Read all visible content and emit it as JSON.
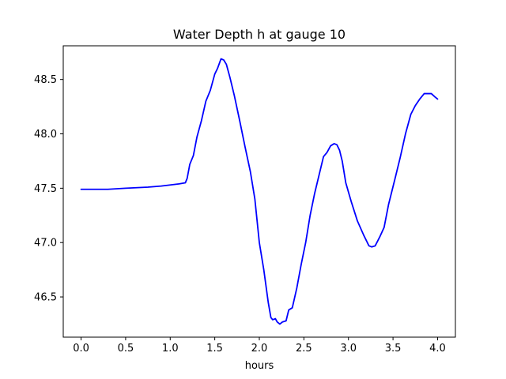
{
  "chart_data": {
    "type": "line",
    "title": "Water Depth h at gauge 10",
    "xlabel": "hours",
    "ylabel": "",
    "xlim": [
      -0.2,
      4.2
    ],
    "ylim": [
      46.13,
      48.81
    ],
    "xticks": [
      0.0,
      0.5,
      1.0,
      1.5,
      2.0,
      2.5,
      3.0,
      3.5,
      4.0
    ],
    "xtick_labels": [
      "0.0",
      "0.5",
      "1.0",
      "1.5",
      "2.0",
      "2.5",
      "3.0",
      "3.5",
      "4.0"
    ],
    "yticks": [
      46.5,
      47.0,
      47.5,
      48.0,
      48.5
    ],
    "ytick_labels": [
      "46.5",
      "47.0",
      "47.5",
      "48.0",
      "48.5"
    ],
    "grid": false,
    "legend": "none",
    "series": [
      {
        "color": "#0000ff",
        "x": [
          0.0,
          0.3,
          0.5,
          0.75,
          0.9,
          1.0,
          1.1,
          1.17,
          1.19,
          1.22,
          1.26,
          1.3,
          1.35,
          1.4,
          1.45,
          1.5,
          1.53,
          1.57,
          1.6,
          1.63,
          1.67,
          1.72,
          1.78,
          1.84,
          1.9,
          1.95,
          2.0,
          2.05,
          2.1,
          2.13,
          2.15,
          2.18,
          2.2,
          2.23,
          2.26,
          2.3,
          2.33,
          2.37,
          2.42,
          2.47,
          2.52,
          2.57,
          2.62,
          2.67,
          2.72,
          2.76,
          2.8,
          2.84,
          2.87,
          2.9,
          2.93,
          2.97,
          3.03,
          3.1,
          3.17,
          3.23,
          3.26,
          3.3,
          3.35,
          3.4,
          3.45,
          3.52,
          3.58,
          3.64,
          3.7,
          3.75,
          3.8,
          3.85,
          3.88,
          3.93,
          3.97,
          4.0
        ],
        "y": [
          47.49,
          47.49,
          47.5,
          47.51,
          47.52,
          47.53,
          47.54,
          47.55,
          47.59,
          47.72,
          47.8,
          47.97,
          48.12,
          48.3,
          48.4,
          48.55,
          48.6,
          48.69,
          48.68,
          48.64,
          48.52,
          48.35,
          48.12,
          47.88,
          47.65,
          47.4,
          47.0,
          46.75,
          46.45,
          46.31,
          46.29,
          46.3,
          46.27,
          46.25,
          46.27,
          46.28,
          46.38,
          46.4,
          46.58,
          46.8,
          47.0,
          47.25,
          47.45,
          47.62,
          47.79,
          47.83,
          47.89,
          47.91,
          47.9,
          47.85,
          47.75,
          47.55,
          47.38,
          47.2,
          47.07,
          46.97,
          46.96,
          46.97,
          47.05,
          47.14,
          47.35,
          47.58,
          47.78,
          48.0,
          48.18,
          48.26,
          48.32,
          48.37,
          48.37,
          48.37,
          48.34,
          48.32
        ]
      }
    ]
  }
}
